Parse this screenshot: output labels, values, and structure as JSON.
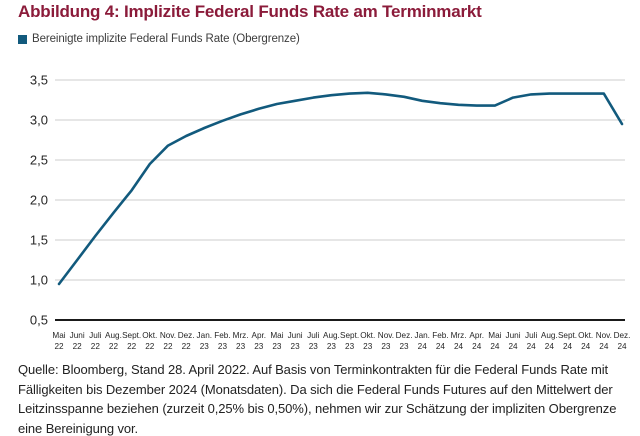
{
  "title": "Abbildung 4: Implizite Federal Funds Rate am Terminmarkt",
  "title_color": "#8b1b3a",
  "legend": {
    "label": "Bereinigte implizite Federal Funds Rate (Obergrenze)",
    "swatch_color": "#125a7d"
  },
  "footnote": "Quelle: Bloomberg, Stand 28. April 2022. Auf Basis von Terminkontrakten für die Federal Funds Rate mit Fälligkeiten bis Dezember 2024 (Monatsdaten). Da sich die Federal Funds Futures auf den Mittelwert der Leitzinsspanne beziehen (zurzeit 0,25% bis 0,50%), nehmen wir zur Schätzung der impliziten Obergrenze eine Bereinigung vor.",
  "chart_data": {
    "type": "line",
    "title": "Abbildung 4: Implizite Federal Funds Rate am Terminmarkt",
    "xlabel": "",
    "ylabel": "",
    "ylim": [
      0.5,
      3.5
    ],
    "yticks": [
      0.5,
      1.0,
      1.5,
      2.0,
      2.5,
      3.0,
      3.5
    ],
    "ytick_labels": [
      "0,5",
      "1,0",
      "1,5",
      "2,0",
      "2,5",
      "3,0",
      "3,5"
    ],
    "axis_baseline_value": 0.5,
    "grid": "horizontal",
    "grid_color": "#cdcdcd",
    "axis_color": "#1a1a1a",
    "tick_label_color": "#262626",
    "legend_position": "top-left",
    "categories_month": [
      "Mai",
      "Juni",
      "Juli",
      "Aug.",
      "Sept.",
      "Okt.",
      "Nov.",
      "Dez.",
      "Jan.",
      "Feb.",
      "Mrz.",
      "Apr.",
      "Mai",
      "Juni",
      "Juli",
      "Aug.",
      "Sept.",
      "Okt.",
      "Nov.",
      "Dez.",
      "Jan.",
      "Feb.",
      "Mrz.",
      "Apr.",
      "Mai",
      "Juni",
      "Juli",
      "Aug.",
      "Sept.",
      "Okt.",
      "Nov.",
      "Dez."
    ],
    "categories_year": [
      "22",
      "22",
      "22",
      "22",
      "22",
      "22",
      "22",
      "22",
      "23",
      "23",
      "23",
      "23",
      "23",
      "23",
      "23",
      "23",
      "23",
      "23",
      "23",
      "23",
      "24",
      "24",
      "24",
      "24",
      "24",
      "24",
      "24",
      "24",
      "24",
      "24",
      "24",
      "24"
    ],
    "series": [
      {
        "name": "Bereinigte implizite Federal Funds Rate (Obergrenze)",
        "color": "#125a7d",
        "values": [
          0.95,
          1.25,
          1.55,
          1.84,
          2.12,
          2.45,
          2.68,
          2.8,
          2.9,
          2.99,
          3.07,
          3.14,
          3.2,
          3.24,
          3.28,
          3.31,
          3.33,
          3.34,
          3.32,
          3.29,
          3.24,
          3.21,
          3.19,
          3.18,
          3.18,
          3.28,
          3.32,
          3.33,
          3.33,
          3.33,
          3.33,
          2.95
        ]
      }
    ]
  }
}
